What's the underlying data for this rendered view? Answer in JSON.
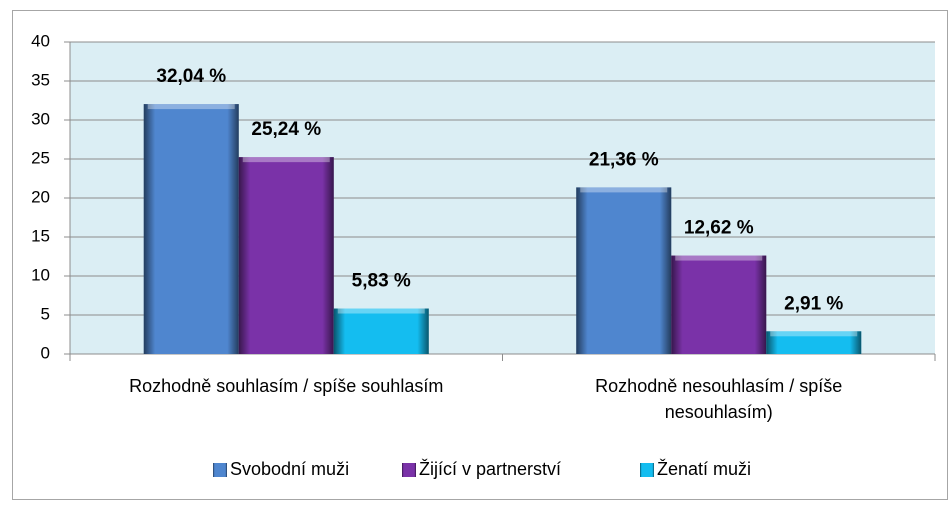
{
  "chart_data": {
    "type": "bar",
    "categories": [
      "Rozhodně souhlasím / spíše souhlasím",
      "Rozhodně nesouhlasím / spíše nesouhlasím)"
    ],
    "series": [
      {
        "name": "Svobodní muži",
        "color": "#4f86cf",
        "values": [
          32.04,
          21.36
        ],
        "value_labels": [
          "32,04 %",
          "21,36 %"
        ]
      },
      {
        "name": "Žijící v partnerství",
        "color": "#7a32a8",
        "values": [
          25.24,
          12.62
        ],
        "value_labels": [
          "25,24 %",
          "12,62 %"
        ]
      },
      {
        "name": "Ženatí muži",
        "color": "#14bdf0",
        "values": [
          5.83,
          2.91
        ],
        "value_labels": [
          "5,83 %",
          "2,91 %"
        ]
      }
    ],
    "ylim": [
      0,
      40
    ],
    "yticks": [
      0,
      5,
      10,
      15,
      20,
      25,
      30,
      35,
      40
    ],
    "grid": true,
    "legend": "bottom"
  }
}
